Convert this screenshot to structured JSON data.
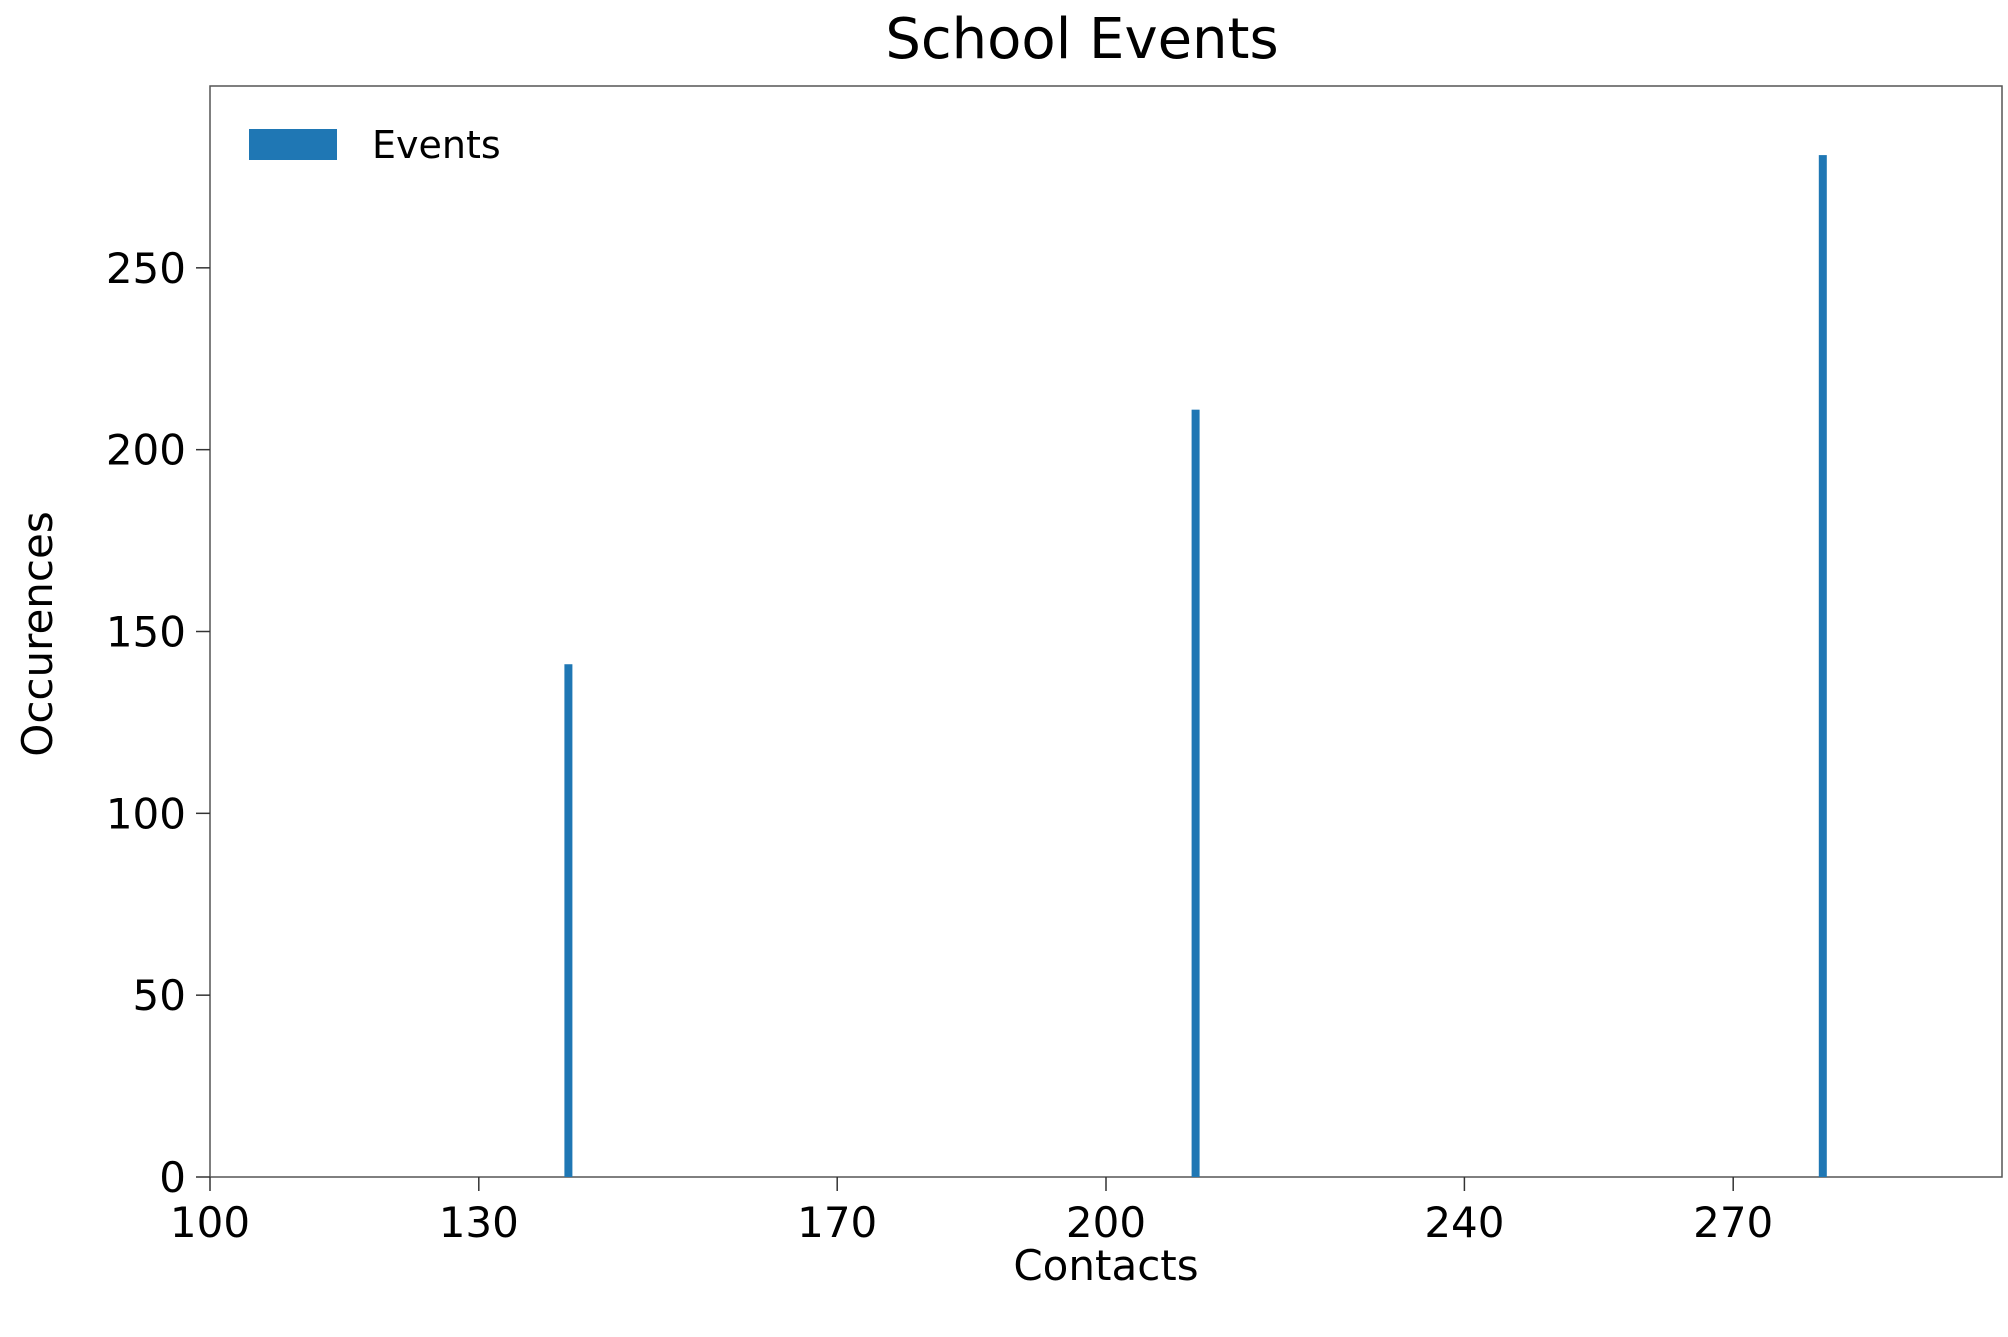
{
  "chart_data": {
    "type": "bar",
    "title": "School Events",
    "xlabel": "Contacts",
    "ylabel": "Occurences",
    "x_ticks": [
      100,
      130,
      170,
      200,
      240,
      270
    ],
    "y_ticks": [
      0,
      50,
      100,
      150,
      200,
      250
    ],
    "xlim": [
      100,
      300
    ],
    "ylim": [
      0,
      300
    ],
    "series": [
      {
        "name": "Events",
        "color": "#1f77b4",
        "x": [
          140,
          210,
          280
        ],
        "values": [
          141,
          211,
          281
        ]
      }
    ],
    "legend_position": "top-left",
    "grid": false
  }
}
